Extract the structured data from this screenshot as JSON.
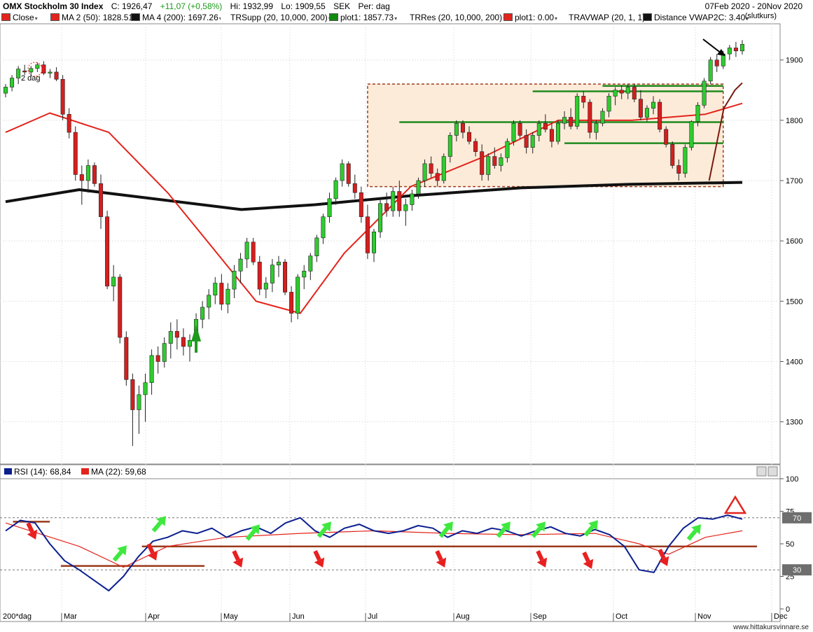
{
  "header": {
    "title": "OMX Stockholm 30 Index",
    "close": "C: 1926,47",
    "change": "+11,07 (+0,58%)",
    "high": "Hi: 1932,99",
    "low": "Lo: 1909,55",
    "currency": "SEK",
    "period": "Per: dag",
    "date_range": "07Feb 2020 - 20Nov 2020"
  },
  "legend": [
    {
      "label": "Close",
      "color": "#e3241c"
    },
    {
      "label": "MA 2 (50): 1828.51",
      "color": "#e3241c"
    },
    {
      "label": "MA 4 (200): 1697.26",
      "color": "#111111"
    },
    {
      "label": "TRSupp (20, 10,000, 200)",
      "color": "#ffffff"
    },
    {
      "label": "plot1: 1857.73",
      "color": "#138a13"
    },
    {
      "label": "TRRes (20, 10,000, 200)",
      "color": "#ffffff"
    },
    {
      "label": "plot1: 0.00",
      "color": "#e3241c"
    },
    {
      "label": "TRAVWAP (20, 1, 1)",
      "color": "#ffffff"
    },
    {
      "label": "Distance VWAP2C: 3.40",
      "color": "#111111"
    }
  ],
  "slutkurs_label": "(slutkurs)",
  "price_annotation": "2 dag",
  "rsi_header": [
    {
      "label": "RSI (14): 68,84",
      "color": "#0b1f8f"
    },
    {
      "label": "MA (22): 59,68",
      "color": "#e3241c"
    }
  ],
  "x_axis_start_label": "200*dag",
  "footer": "www.hittakursvinnare.se",
  "chart_data": {
    "type": "candlestick",
    "price_axis": {
      "ticks": [
        1300,
        1400,
        1500,
        1600,
        1700,
        1800,
        1900
      ],
      "range": [
        1230,
        1960
      ]
    },
    "months": [
      "Mar",
      "Apr",
      "May",
      "Jun",
      "Jul",
      "Aug",
      "Sep",
      "Oct",
      "Nov",
      "Dec"
    ],
    "candles": [
      [
        1845,
        1860,
        1838,
        1855
      ],
      [
        1855,
        1875,
        1848,
        1870
      ],
      [
        1870,
        1890,
        1860,
        1885
      ],
      [
        1882,
        1892,
        1875,
        1880
      ],
      [
        1880,
        1890,
        1872,
        1886
      ],
      [
        1886,
        1896,
        1880,
        1892
      ],
      [
        1892,
        1898,
        1875,
        1878
      ],
      [
        1878,
        1885,
        1870,
        1880
      ],
      [
        1880,
        1888,
        1865,
        1868
      ],
      [
        1868,
        1875,
        1800,
        1810
      ],
      [
        1810,
        1820,
        1770,
        1780
      ],
      [
        1780,
        1790,
        1700,
        1710
      ],
      [
        1710,
        1725,
        1660,
        1700
      ],
      [
        1700,
        1735,
        1680,
        1725
      ],
      [
        1725,
        1730,
        1690,
        1695
      ],
      [
        1695,
        1710,
        1620,
        1640
      ],
      [
        1640,
        1650,
        1520,
        1525
      ],
      [
        1525,
        1560,
        1500,
        1540
      ],
      [
        1540,
        1545,
        1430,
        1440
      ],
      [
        1440,
        1450,
        1360,
        1370
      ],
      [
        1370,
        1380,
        1260,
        1320
      ],
      [
        1320,
        1360,
        1280,
        1345
      ],
      [
        1345,
        1380,
        1300,
        1365
      ],
      [
        1365,
        1420,
        1345,
        1410
      ],
      [
        1410,
        1425,
        1380,
        1400
      ],
      [
        1400,
        1440,
        1390,
        1430
      ],
      [
        1430,
        1465,
        1405,
        1450
      ],
      [
        1450,
        1470,
        1420,
        1440
      ],
      [
        1440,
        1455,
        1410,
        1425
      ],
      [
        1425,
        1445,
        1400,
        1435
      ],
      [
        1435,
        1480,
        1425,
        1470
      ],
      [
        1470,
        1500,
        1455,
        1490
      ],
      [
        1490,
        1520,
        1470,
        1510
      ],
      [
        1510,
        1540,
        1495,
        1530
      ],
      [
        1530,
        1545,
        1485,
        1495
      ],
      [
        1495,
        1530,
        1480,
        1520
      ],
      [
        1520,
        1560,
        1505,
        1550
      ],
      [
        1550,
        1580,
        1530,
        1570
      ],
      [
        1570,
        1605,
        1555,
        1598
      ],
      [
        1598,
        1605,
        1560,
        1565
      ],
      [
        1565,
        1575,
        1510,
        1520
      ],
      [
        1520,
        1540,
        1505,
        1530
      ],
      [
        1530,
        1570,
        1515,
        1560
      ],
      [
        1560,
        1575,
        1540,
        1565
      ],
      [
        1565,
        1570,
        1510,
        1515
      ],
      [
        1515,
        1525,
        1465,
        1480
      ],
      [
        1480,
        1545,
        1470,
        1540
      ],
      [
        1540,
        1560,
        1520,
        1550
      ],
      [
        1550,
        1580,
        1535,
        1575
      ],
      [
        1575,
        1610,
        1565,
        1605
      ],
      [
        1605,
        1645,
        1595,
        1640
      ],
      [
        1640,
        1680,
        1630,
        1670
      ],
      [
        1670,
        1705,
        1660,
        1700
      ],
      [
        1700,
        1735,
        1690,
        1728
      ],
      [
        1728,
        1732,
        1690,
        1695
      ],
      [
        1695,
        1710,
        1670,
        1680
      ],
      [
        1680,
        1690,
        1630,
        1640
      ],
      [
        1640,
        1660,
        1570,
        1580
      ],
      [
        1580,
        1620,
        1565,
        1615
      ],
      [
        1615,
        1670,
        1605,
        1662
      ],
      [
        1662,
        1680,
        1640,
        1650
      ],
      [
        1650,
        1690,
        1640,
        1682
      ],
      [
        1682,
        1700,
        1640,
        1650
      ],
      [
        1650,
        1670,
        1625,
        1660
      ],
      [
        1660,
        1685,
        1650,
        1678
      ],
      [
        1678,
        1705,
        1670,
        1700
      ],
      [
        1700,
        1735,
        1690,
        1728
      ],
      [
        1728,
        1740,
        1705,
        1712
      ],
      [
        1712,
        1720,
        1690,
        1700
      ],
      [
        1700,
        1745,
        1695,
        1740
      ],
      [
        1740,
        1780,
        1730,
        1775
      ],
      [
        1775,
        1800,
        1765,
        1795
      ],
      [
        1795,
        1800,
        1770,
        1780
      ],
      [
        1780,
        1790,
        1760,
        1765
      ],
      [
        1765,
        1770,
        1740,
        1748
      ],
      [
        1748,
        1760,
        1700,
        1710
      ],
      [
        1710,
        1745,
        1700,
        1740
      ],
      [
        1740,
        1755,
        1720,
        1725
      ],
      [
        1725,
        1745,
        1715,
        1738
      ],
      [
        1738,
        1770,
        1730,
        1765
      ],
      [
        1765,
        1800,
        1758,
        1795
      ],
      [
        1795,
        1800,
        1770,
        1775
      ],
      [
        1775,
        1785,
        1745,
        1755
      ],
      [
        1755,
        1780,
        1745,
        1775
      ],
      [
        1775,
        1800,
        1765,
        1795
      ],
      [
        1795,
        1810,
        1780,
        1785
      ],
      [
        1785,
        1795,
        1755,
        1765
      ],
      [
        1765,
        1800,
        1760,
        1795
      ],
      [
        1795,
        1815,
        1785,
        1805
      ],
      [
        1805,
        1820,
        1785,
        1790
      ],
      [
        1790,
        1845,
        1785,
        1840
      ],
      [
        1840,
        1848,
        1820,
        1830
      ],
      [
        1830,
        1835,
        1770,
        1780
      ],
      [
        1780,
        1800,
        1768,
        1795
      ],
      [
        1795,
        1820,
        1790,
        1815
      ],
      [
        1815,
        1845,
        1805,
        1840
      ],
      [
        1840,
        1855,
        1825,
        1850
      ],
      [
        1850,
        1858,
        1835,
        1845
      ],
      [
        1845,
        1860,
        1835,
        1855
      ],
      [
        1855,
        1860,
        1830,
        1835
      ],
      [
        1835,
        1850,
        1800,
        1805
      ],
      [
        1805,
        1825,
        1798,
        1820
      ],
      [
        1820,
        1840,
        1810,
        1830
      ],
      [
        1830,
        1835,
        1780,
        1785
      ],
      [
        1785,
        1790,
        1755,
        1760
      ],
      [
        1760,
        1765,
        1720,
        1725
      ],
      [
        1725,
        1735,
        1700,
        1712
      ],
      [
        1712,
        1760,
        1705,
        1755
      ],
      [
        1755,
        1800,
        1750,
        1798
      ],
      [
        1798,
        1830,
        1790,
        1825
      ],
      [
        1825,
        1870,
        1820,
        1865
      ],
      [
        1865,
        1905,
        1860,
        1900
      ],
      [
        1900,
        1910,
        1880,
        1890
      ],
      [
        1890,
        1915,
        1885,
        1910
      ],
      [
        1910,
        1925,
        1900,
        1920
      ],
      [
        1920,
        1930,
        1905,
        1915
      ],
      [
        1915,
        1933,
        1909,
        1926
      ]
    ],
    "ma50": [
      [
        0,
        1780
      ],
      [
        0.06,
        1812
      ],
      [
        0.14,
        1780
      ],
      [
        0.22,
        1680
      ],
      [
        0.28,
        1590
      ],
      [
        0.34,
        1500
      ],
      [
        0.4,
        1480
      ],
      [
        0.46,
        1580
      ],
      [
        0.55,
        1690
      ],
      [
        0.65,
        1740
      ],
      [
        0.75,
        1800
      ],
      [
        0.85,
        1800
      ],
      [
        0.95,
        1810
      ],
      [
        1,
        1828
      ]
    ],
    "ma200": [
      [
        0,
        1665
      ],
      [
        0.1,
        1685
      ],
      [
        0.2,
        1670
      ],
      [
        0.32,
        1652
      ],
      [
        0.42,
        1660
      ],
      [
        0.55,
        1675
      ],
      [
        0.7,
        1688
      ],
      [
        0.85,
        1694
      ],
      [
        1,
        1697
      ]
    ],
    "rsi": [
      [
        0,
        60
      ],
      [
        0.02,
        68
      ],
      [
        0.04,
        66
      ],
      [
        0.06,
        50
      ],
      [
        0.08,
        37
      ],
      [
        0.1,
        30
      ],
      [
        0.12,
        22
      ],
      [
        0.14,
        14
      ],
      [
        0.16,
        25
      ],
      [
        0.18,
        40
      ],
      [
        0.2,
        52
      ],
      [
        0.22,
        55
      ],
      [
        0.24,
        60
      ],
      [
        0.26,
        58
      ],
      [
        0.28,
        62
      ],
      [
        0.3,
        55
      ],
      [
        0.32,
        60
      ],
      [
        0.34,
        63
      ],
      [
        0.36,
        58
      ],
      [
        0.38,
        66
      ],
      [
        0.4,
        70
      ],
      [
        0.42,
        60
      ],
      [
        0.44,
        55
      ],
      [
        0.46,
        62
      ],
      [
        0.48,
        65
      ],
      [
        0.5,
        60
      ],
      [
        0.52,
        58
      ],
      [
        0.54,
        60
      ],
      [
        0.56,
        64
      ],
      [
        0.58,
        62
      ],
      [
        0.6,
        55
      ],
      [
        0.62,
        60
      ],
      [
        0.64,
        58
      ],
      [
        0.66,
        62
      ],
      [
        0.68,
        60
      ],
      [
        0.7,
        56
      ],
      [
        0.72,
        60
      ],
      [
        0.74,
        63
      ],
      [
        0.76,
        58
      ],
      [
        0.78,
        56
      ],
      [
        0.8,
        61
      ],
      [
        0.82,
        57
      ],
      [
        0.84,
        48
      ],
      [
        0.86,
        30
      ],
      [
        0.88,
        28
      ],
      [
        0.9,
        48
      ],
      [
        0.92,
        62
      ],
      [
        0.94,
        70
      ],
      [
        0.96,
        69
      ],
      [
        0.98,
        72
      ],
      [
        1,
        69
      ]
    ],
    "rsi_ma": [
      [
        0,
        66
      ],
      [
        0.1,
        48
      ],
      [
        0.16,
        32
      ],
      [
        0.22,
        48
      ],
      [
        0.3,
        55
      ],
      [
        0.4,
        58
      ],
      [
        0.5,
        60
      ],
      [
        0.6,
        58
      ],
      [
        0.7,
        57
      ],
      [
        0.8,
        58
      ],
      [
        0.86,
        50
      ],
      [
        0.9,
        42
      ],
      [
        0.95,
        55
      ],
      [
        1,
        60
      ]
    ],
    "rsi_axis": {
      "ticks": [
        0,
        25,
        50,
        75,
        100
      ],
      "levels": [
        30,
        70
      ]
    }
  }
}
